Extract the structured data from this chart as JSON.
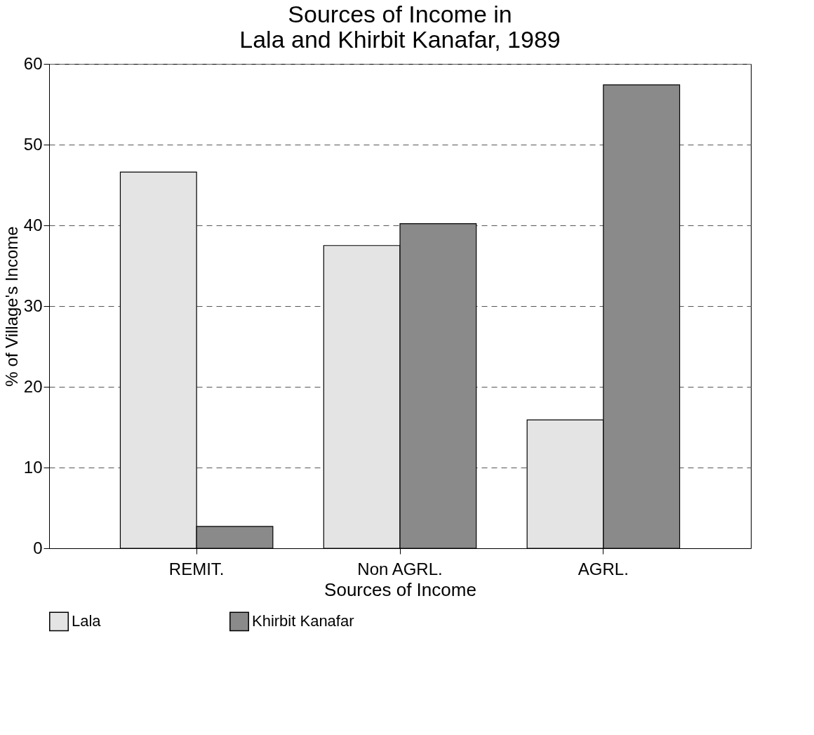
{
  "chart_data": {
    "type": "bar",
    "title": [
      "Sources of Income in",
      "Lala and Khirbit Kanafar, 1989"
    ],
    "xlabel": "Sources of Income",
    "ylabel": "% of Village's Income",
    "categories": [
      "REMIT.",
      "Non AGRL.",
      "AGRL."
    ],
    "series": [
      {
        "name": "Lala",
        "color": "#e4e4e4",
        "values": [
          46.6,
          37.5,
          15.9
        ]
      },
      {
        "name": "Khirbit Kanafar",
        "color": "#8a8a8a",
        "values": [
          2.7,
          40.2,
          57.4
        ]
      }
    ],
    "ylim": [
      0,
      60
    ],
    "yticks": [
      0,
      10,
      20,
      30,
      40,
      50,
      60
    ],
    "grid": "y",
    "legend": "bottom"
  }
}
